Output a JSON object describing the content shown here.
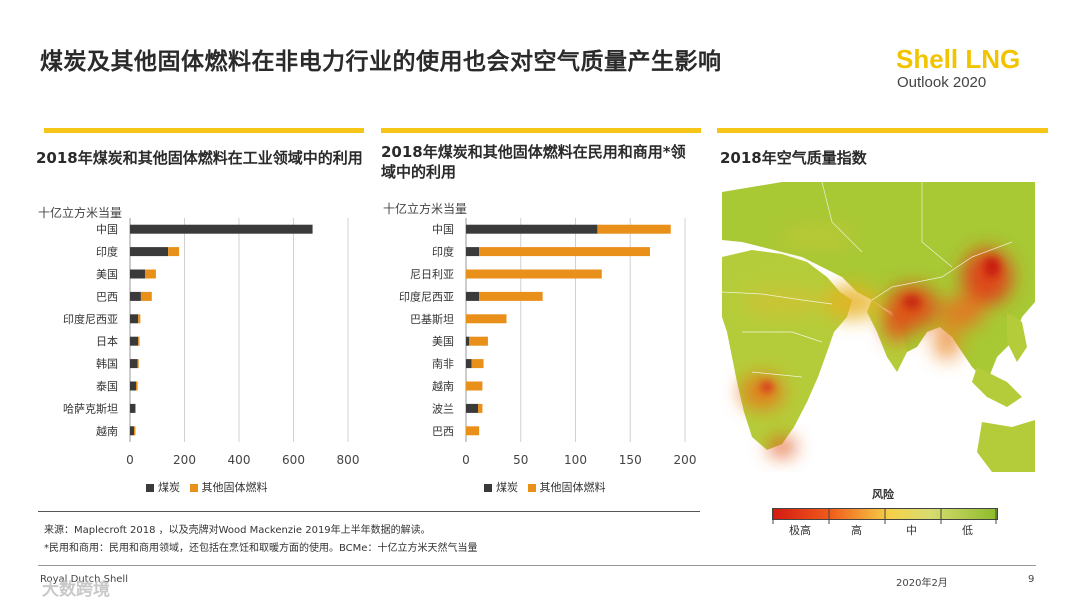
{
  "header": {
    "title": "煤炭及其他固体燃料在非电力行业的使用也会对空气质量产生影响",
    "logo_line1": "Shell LNG",
    "logo_line2": "Outlook 2020"
  },
  "colors": {
    "coal": "#3a3a3a",
    "other": "#e8901a",
    "accent": "#f5c518"
  },
  "charts": {
    "industrial": {
      "title": "2018年煤炭和其他固体燃料在工业领域中的利用",
      "unit": "十亿立方米当量",
      "legend_coal": "煤炭",
      "legend_other": "其他固体燃料"
    },
    "residential": {
      "title": "2018年煤炭和其他固体燃料在民用和商用*领域中的利用",
      "unit": "十亿立方米当量",
      "legend_coal": "煤炭",
      "legend_other": "其他固体燃料"
    }
  },
  "chart_data": [
    {
      "type": "bar",
      "orientation": "horizontal",
      "stacked": true,
      "title": "2018年煤炭和其他固体燃料在工业领域中的利用",
      "xlabel": "十亿立方米当量",
      "categories": [
        "中国",
        "印度",
        "美国",
        "巴西",
        "印度尼西亚",
        "日本",
        "韩国",
        "泰国",
        "哈萨克斯坦",
        "越南"
      ],
      "series": [
        {
          "name": "煤炭",
          "values": [
            670,
            140,
            55,
            40,
            30,
            30,
            28,
            22,
            20,
            15
          ]
        },
        {
          "name": "其他固体燃料",
          "values": [
            0,
            40,
            40,
            40,
            8,
            5,
            4,
            6,
            0,
            5
          ]
        }
      ],
      "xlim": [
        0,
        800
      ],
      "ticks": [
        0,
        200,
        400,
        600,
        800
      ]
    },
    {
      "type": "bar",
      "orientation": "horizontal",
      "stacked": true,
      "title": "2018年煤炭和其他固体燃料在民用和商用*领域中的利用",
      "xlabel": "十亿立方米当量",
      "categories": [
        "中国",
        "印度",
        "尼日利亚",
        "印度尼西亚",
        "巴基斯坦",
        "美国",
        "南非",
        "越南",
        "波兰",
        "巴西"
      ],
      "series": [
        {
          "name": "煤炭",
          "values": [
            120,
            12,
            0,
            12,
            0,
            3,
            5,
            0,
            11,
            0
          ]
        },
        {
          "name": "其他固体燃料",
          "values": [
            67,
            156,
            124,
            58,
            37,
            17,
            11,
            15,
            4,
            12
          ]
        }
      ],
      "xlim": [
        0,
        200
      ],
      "ticks": [
        0,
        50,
        100,
        150,
        200
      ]
    }
  ],
  "map": {
    "title": "2018年空气质量指数",
    "scale_title": "风险",
    "scale_labels": [
      "极高",
      "高",
      "中",
      "低"
    ]
  },
  "notes": {
    "source": "来源：Maplecroft 2018 ，以及壳牌对Wood Mackenzie 2019年上半年数据的解读。",
    "footnote": "*民用和商用：民用和商用领域，还包括在烹饪和取暖方面的使用。BCMe：十亿立方米天然气当量"
  },
  "footer": {
    "company": "Royal Dutch Shell",
    "date": "2020年2月",
    "page": "9",
    "watermark": "大数跨境"
  }
}
